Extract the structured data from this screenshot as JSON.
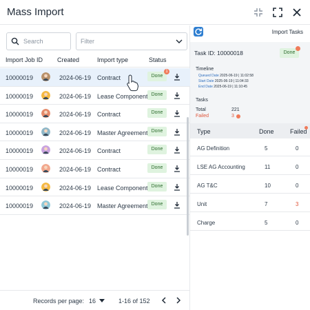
{
  "window": {
    "title": "Mass Import"
  },
  "left": {
    "search_placeholder": "Search",
    "filter_placeholder": "Filter",
    "columns": [
      "Import Job ID",
      "Created",
      "Import type",
      "Status"
    ],
    "rows": [
      {
        "id": "10000019",
        "created": "2024-06-19",
        "type": "Contract",
        "status": "Done",
        "alert": "1",
        "selected": true,
        "avatar_color": "#b8916a"
      },
      {
        "id": "10000019",
        "created": "2024-06-19",
        "type": "Lease Component",
        "status": "Done",
        "selected": false,
        "avatar_color": "#f5b942"
      },
      {
        "id": "10000019",
        "created": "2024-06-19",
        "type": "Contract",
        "status": "Done",
        "selected": false,
        "avatar_color": "#e58b6b"
      },
      {
        "id": "10000019",
        "created": "2024-06-19",
        "type": "Master Agreement",
        "status": "Done",
        "selected": false,
        "avatar_color": "#8fb7c8"
      },
      {
        "id": "10000019",
        "created": "2024-06-19",
        "type": "Contract",
        "status": "Done",
        "selected": false,
        "avatar_color": "#c9a3e0"
      },
      {
        "id": "10000019",
        "created": "2024-06-19",
        "type": "Contract",
        "status": "Done",
        "selected": false,
        "avatar_color": "#f2a88e"
      },
      {
        "id": "10000019",
        "created": "2024-06-19",
        "type": "Lease Component",
        "status": "Done",
        "selected": false,
        "avatar_color": "#f5b942"
      },
      {
        "id": "10000019",
        "created": "2024-06-19",
        "type": "Master Agreement",
        "status": "Done",
        "selected": false,
        "avatar_color": "#8fc9d8"
      }
    ],
    "footer": {
      "records_per_page": "Records per page:",
      "per_page_value": "16",
      "range": "1-16 of 152"
    }
  },
  "right": {
    "panel_title": "Import Tasks",
    "task_id": "Task ID: 10000018",
    "status": "Done",
    "timeline": {
      "label": "Timeline",
      "items": [
        {
          "k": "Queued Date",
          "v": "2025-06-19  | 11:02:58"
        },
        {
          "k": "Start Date",
          "v": "2025-06-19  | 11:04:33"
        },
        {
          "k": "End Date",
          "v": "2025-06-19  | 11:10:45"
        }
      ]
    },
    "tasks": {
      "label": "Tasks",
      "total_label": "Total",
      "total_value": "221",
      "failed_label": "Failed",
      "failed_value": "3"
    },
    "table": {
      "headers": [
        "Type",
        "Done",
        "Failed"
      ],
      "rows": [
        {
          "type": "AG Definition",
          "done": "5",
          "failed": "0"
        },
        {
          "type": "LSE AG Accounting",
          "done": "11",
          "failed": "0"
        },
        {
          "type": "AG T&C",
          "done": "10",
          "failed": "0"
        },
        {
          "type": "Unit",
          "done": "7",
          "failed": "3"
        },
        {
          "type": "Charge",
          "done": "5",
          "failed": "0"
        }
      ]
    }
  }
}
